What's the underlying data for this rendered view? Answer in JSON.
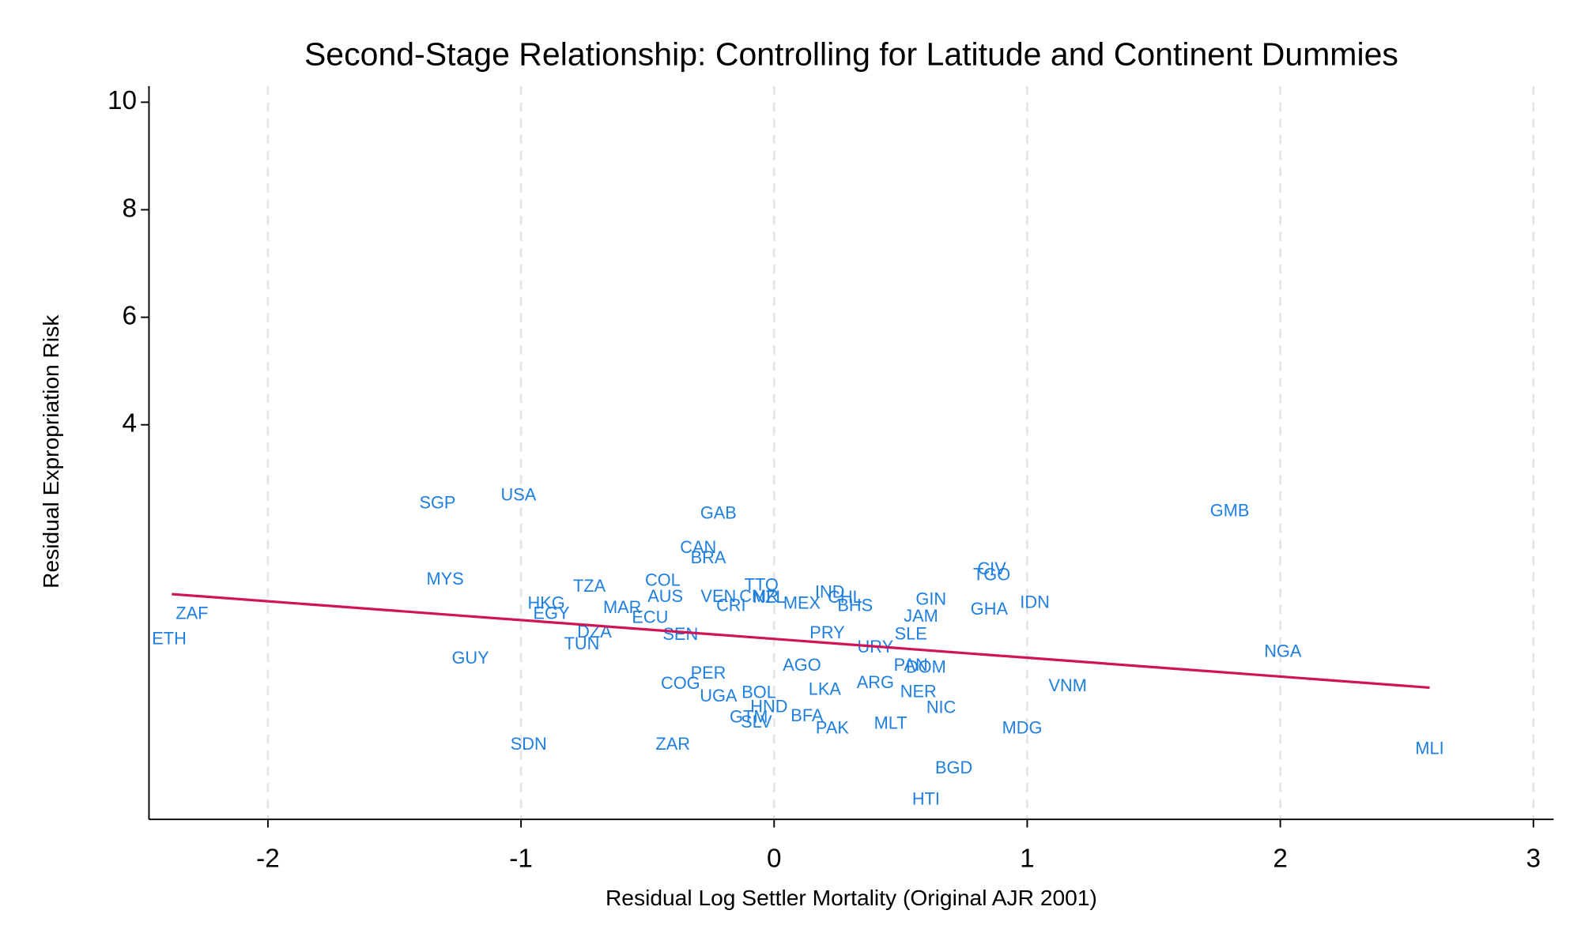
{
  "chart_data": {
    "type": "scatter",
    "title": "Second-Stage Relationship: Controlling for Latitude and Continent Dummies",
    "x_label": "Residual Log Settler Mortality (Original AJR 2001)",
    "y_label": "Residual Expropriation Risk",
    "xlim": [
      -2.47,
      3.08
    ],
    "ylim": [
      -3.34,
      10.3
    ],
    "xticks": [
      -2,
      -1,
      0,
      1,
      2,
      3
    ],
    "yticks": [
      4,
      6,
      8,
      10
    ],
    "grid": true,
    "color": "#1f7fe0",
    "point_labels": [
      "SGP",
      "USA",
      "GAB",
      "GMB",
      "CAN",
      "BRA",
      "MYS",
      "CIV",
      "TGO",
      "TZA",
      "COL",
      "TTO",
      "AUS",
      "VEN",
      "CMR",
      "NZL",
      "IND",
      "CHL",
      "MEX",
      "BHS",
      "GIN",
      "IDN",
      "ZAF",
      "HKG",
      "CRI",
      "MAR",
      "EGY",
      "ECU",
      "GHA",
      "JAM",
      "ETH",
      "DZA",
      "SEN",
      "PRY",
      "SLE",
      "TUN",
      "URY",
      "NGA",
      "GUY",
      "PAN",
      "DOM",
      "AGO",
      "PER",
      "COG",
      "ARG",
      "VNM",
      "LKA",
      "NER",
      "UGA",
      "BOL",
      "HND",
      "NIC",
      "GTM",
      "SLV",
      "BFA",
      "MLT",
      "PAK",
      "MDG",
      "SDN",
      "ZAR",
      "MLI",
      "BGD",
      "HTI"
    ],
    "x": [
      -1.33,
      -1.01,
      -0.22,
      1.8,
      -0.3,
      -0.26,
      -1.3,
      0.86,
      0.86,
      -0.73,
      -0.44,
      -0.05,
      -0.43,
      -0.22,
      -0.06,
      -0.02,
      0.22,
      0.28,
      0.11,
      0.32,
      0.62,
      1.03,
      -2.3,
      -0.9,
      -0.17,
      -0.6,
      -0.88,
      -0.49,
      0.85,
      0.58,
      -2.39,
      -0.71,
      -0.37,
      0.21,
      0.54,
      -0.76,
      0.4,
      2.01,
      -1.2,
      0.54,
      0.6,
      0.11,
      -0.26,
      -0.37,
      0.4,
      1.16,
      0.2,
      0.57,
      -0.22,
      -0.06,
      -0.02,
      0.66,
      -0.1,
      -0.07,
      0.13,
      0.46,
      0.23,
      0.98,
      -0.97,
      -0.4,
      2.59,
      0.71,
      0.6
    ],
    "values": [
      2.53,
      2.68,
      2.34,
      2.38,
      1.7,
      1.51,
      1.11,
      1.3,
      1.19,
      0.98,
      1.09,
      1.0,
      0.79,
      0.79,
      0.79,
      0.77,
      0.87,
      0.77,
      0.66,
      0.62,
      0.74,
      0.68,
      0.47,
      0.66,
      0.62,
      0.58,
      0.47,
      0.4,
      0.55,
      0.42,
      0.0,
      0.13,
      0.08,
      0.11,
      0.09,
      -0.09,
      -0.15,
      -0.23,
      -0.36,
      -0.49,
      -0.53,
      -0.49,
      -0.64,
      -0.83,
      -0.81,
      -0.87,
      -0.94,
      -0.98,
      -1.06,
      -1.0,
      -1.26,
      -1.28,
      -1.45,
      -1.55,
      -1.43,
      -1.57,
      -1.66,
      -1.66,
      -1.96,
      -1.96,
      -2.04,
      -2.4,
      -2.98
    ],
    "fit_line": {
      "color": "#d0145a",
      "x": [
        -2.38,
        2.59
      ],
      "values": [
        0.85,
        -0.89
      ]
    }
  }
}
